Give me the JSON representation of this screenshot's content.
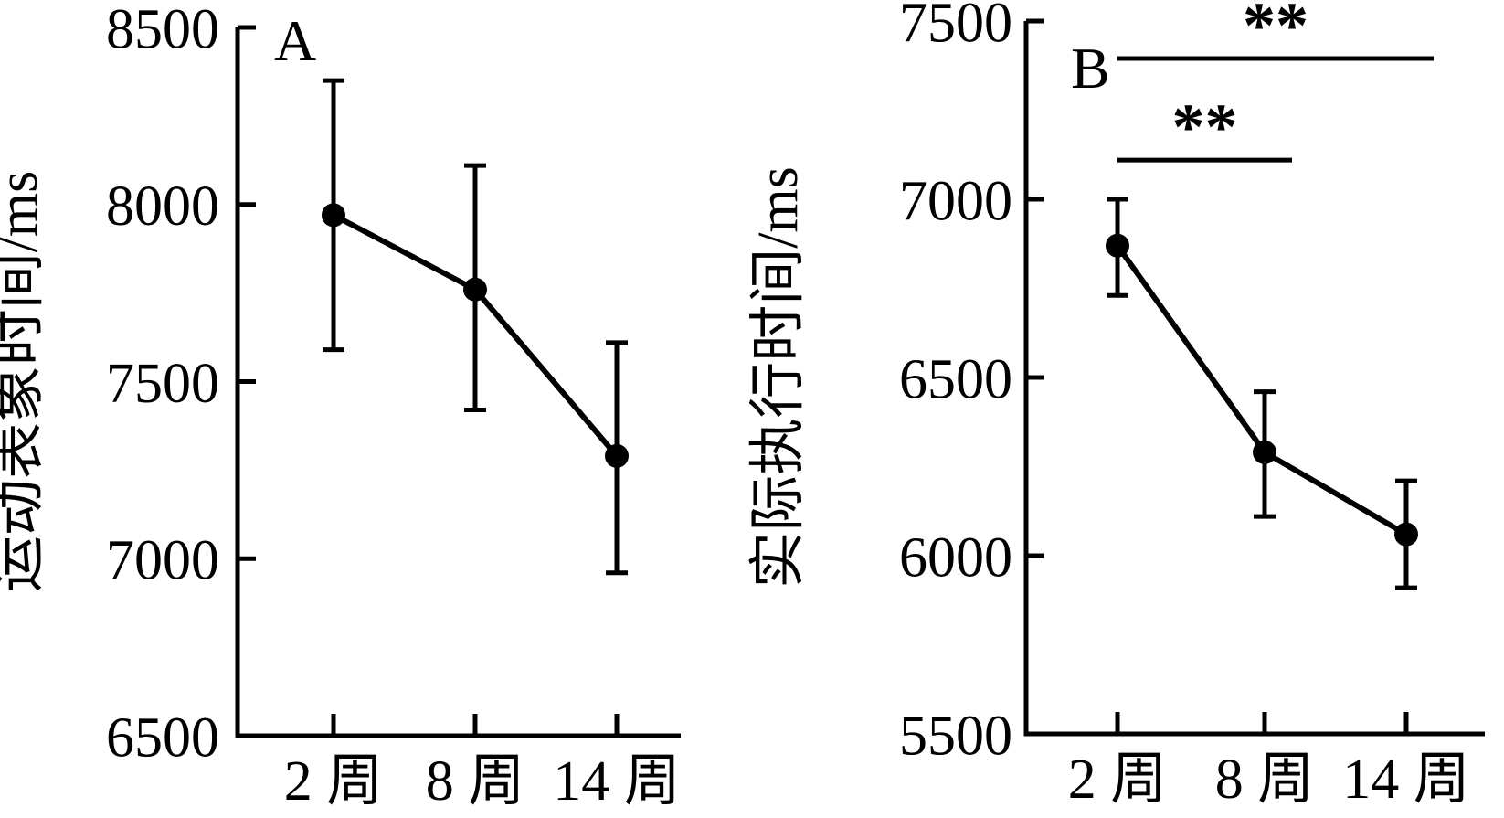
{
  "figure": {
    "background_color": "#ffffff",
    "ink_color": "#000000",
    "description": "Two-panel line chart with error bars"
  },
  "chart_data": [
    {
      "type": "line",
      "panel_label": "A",
      "title": "",
      "xlabel": "",
      "ylabel": "运动表象时间/ms",
      "categories": [
        "2 周",
        "8 周",
        "14 周"
      ],
      "series": [
        {
          "name": "运动表象时间",
          "values": [
            7970,
            7760,
            7290
          ],
          "error_upper": [
            8350,
            8110,
            7610
          ],
          "error_lower": [
            7590,
            7420,
            6960
          ]
        }
      ],
      "ylim": [
        6500,
        8500
      ],
      "yticks": [
        6500,
        7000,
        7500,
        8000,
        8500
      ],
      "grid": false,
      "legend_position": "none",
      "marker": "filled-circle",
      "annotations": []
    },
    {
      "type": "line",
      "panel_label": "B",
      "title": "",
      "xlabel": "",
      "ylabel": "实际执行时间/ms",
      "categories": [
        "2 周",
        "8 周",
        "14 周"
      ],
      "series": [
        {
          "name": "实际执行时间",
          "values": [
            6870,
            6290,
            6060
          ],
          "error_upper": [
            7000,
            6460,
            6210
          ],
          "error_lower": [
            6730,
            6110,
            5910
          ]
        }
      ],
      "ylim": [
        5500,
        7500
      ],
      "yticks": [
        5500,
        6000,
        6500,
        7000,
        7500
      ],
      "grid": false,
      "legend_position": "none",
      "marker": "filled-circle",
      "annotations": [
        {
          "type": "significance",
          "label": "**",
          "from": "2 周",
          "to": "8 周",
          "y_value": 7110
        },
        {
          "type": "significance",
          "label": "**",
          "from": "2 周",
          "to": "14 周",
          "y_value": 7395
        }
      ]
    }
  ]
}
